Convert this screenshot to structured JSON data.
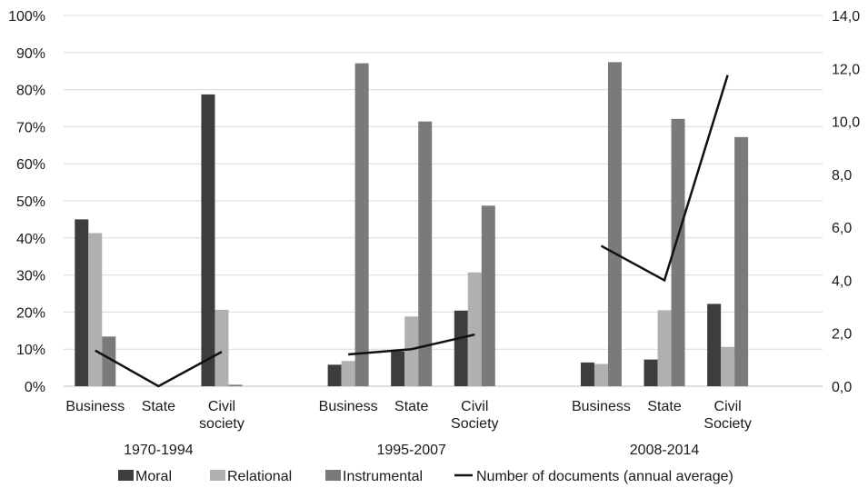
{
  "chart_data": {
    "type": "bar",
    "groups": [
      {
        "label": "1970-1994",
        "categories": [
          "Business",
          "State",
          "Civil society"
        ],
        "moral": [
          45,
          null,
          78.7
        ],
        "relational": [
          41.3,
          null,
          20.6
        ],
        "instrumental": [
          13.4,
          null,
          0.4
        ],
        "documents": [
          1.35,
          0.0,
          1.3
        ]
      },
      {
        "label": "1995-2007",
        "categories": [
          "Business",
          "State",
          "Civil Society"
        ],
        "moral": [
          5.8,
          9.4,
          20.4
        ],
        "relational": [
          6.8,
          18.8,
          30.7
        ],
        "instrumental": [
          87.1,
          71.4,
          48.7
        ],
        "documents": [
          1.2,
          1.4,
          1.95
        ]
      },
      {
        "label": "2008-2014",
        "categories": [
          "Business",
          "State",
          "Civil Society"
        ],
        "moral": [
          6.4,
          7.2,
          22.2
        ],
        "relational": [
          6,
          20.5,
          10.6
        ],
        "instrumental": [
          87.4,
          72.1,
          67.2
        ],
        "documents": [
          5.3,
          4.0,
          11.75
        ]
      }
    ],
    "series": [
      {
        "name": "Moral",
        "key": "moral",
        "color": "#3d3d3d",
        "axis": "left"
      },
      {
        "name": "Relational",
        "key": "relational",
        "color": "#b0b0b0",
        "axis": "left"
      },
      {
        "name": "Instrumental",
        "key": "instrumental",
        "color": "#7a7a7a",
        "axis": "left"
      },
      {
        "name": "Number of documents (annual average)",
        "key": "documents",
        "color": "#111111",
        "axis": "right",
        "type": "line"
      }
    ],
    "left_axis": {
      "min": 0,
      "max": 100,
      "ticks": [
        "0%",
        "10%",
        "20%",
        "30%",
        "40%",
        "50%",
        "60%",
        "70%",
        "80%",
        "90%",
        "100%"
      ]
    },
    "right_axis": {
      "min": 0,
      "max": 14,
      "ticks": [
        "0,0",
        "2,0",
        "4,0",
        "6,0",
        "8,0",
        "10,0",
        "12,0",
        "14,0"
      ]
    },
    "grid": true,
    "legend": "bottom"
  }
}
